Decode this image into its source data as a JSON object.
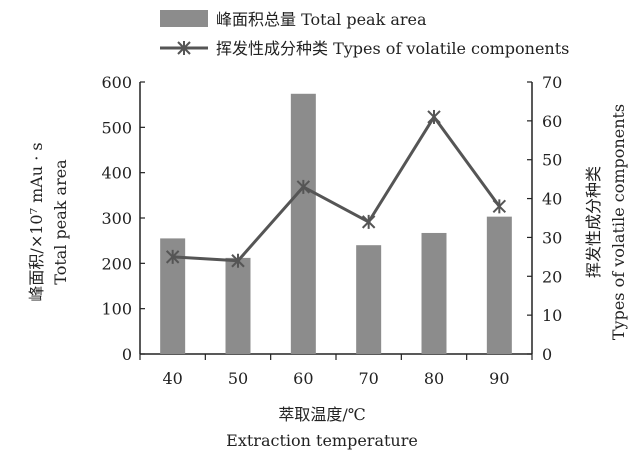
{
  "chart_data": {
    "type": "bar+line",
    "categories": [
      "40",
      "50",
      "60",
      "70",
      "80",
      "90"
    ],
    "series": [
      {
        "name": "峰面积总量 Total peak area",
        "type": "bar",
        "axis": "left",
        "values": [
          255,
          212,
          574,
          240,
          267,
          303
        ]
      },
      {
        "name": "挥发性成分种类 Types of volatile components",
        "type": "line",
        "axis": "right",
        "values": [
          25,
          24,
          43,
          34,
          61,
          38
        ]
      }
    ],
    "xlabel": {
      "cn": "萃取温度/℃",
      "en": "Extraction temperature"
    },
    "ylabel_left": {
      "cn": "峰面积/×10⁷ mAu · s",
      "en": "Total peak area"
    },
    "ylabel_right": {
      "cn": "挥发性成分种类",
      "en": "Types of volatile components"
    },
    "ylim_left": [
      0,
      600
    ],
    "ylim_right": [
      0,
      70
    ],
    "yticks_left": [
      0,
      100,
      200,
      300,
      400,
      500,
      600
    ],
    "yticks_right": [
      0,
      10,
      20,
      30,
      40,
      50,
      60,
      70
    ],
    "legend_position": "top",
    "grid": false,
    "colors": {
      "bar": "#8c8c8c",
      "line": "#555555",
      "axis": "#222222"
    }
  }
}
